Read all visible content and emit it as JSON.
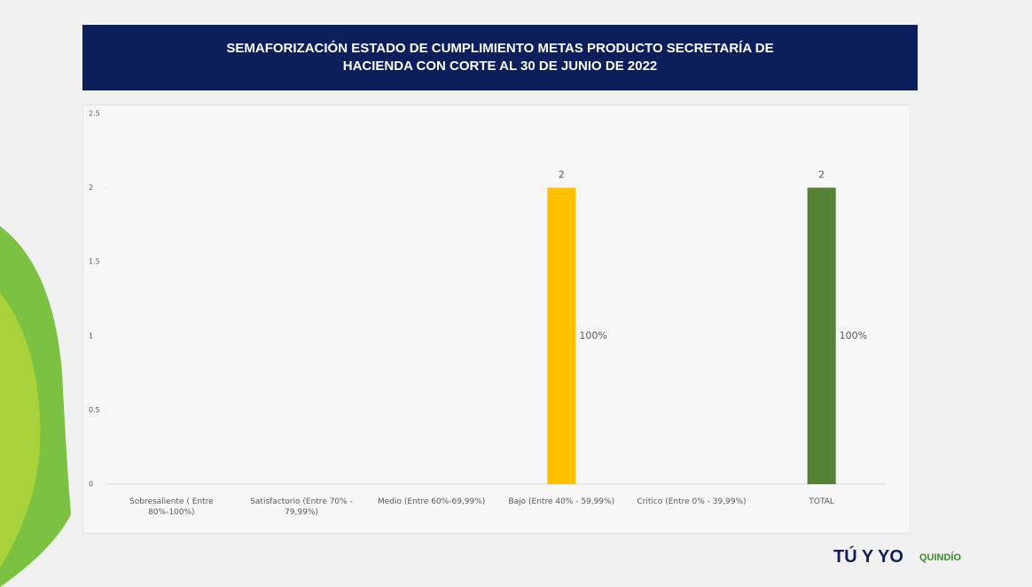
{
  "chart_data": {
    "type": "bar",
    "title_lines": [
      "SEMAFORIZACIÓN  ESTADO DE CUMPLIMIENTO METAS PRODUCTO  SECRETARÍA DE",
      "HACIENDA CON CORTE AL 30 DE JUNIO DE 2022"
    ],
    "categories": [
      "Sobresaliente  ( Entre 80%-100%)",
      "Satisfactorio (Entre 70% - 79,99%)",
      "Medio (Entre 60%-69,99%)",
      "Bajo (Entre 40% - 59,99%)",
      "Critico (Entre 0% - 39,99%)",
      "TOTAL"
    ],
    "values": [
      null,
      null,
      null,
      2,
      null,
      2
    ],
    "colors": [
      null,
      null,
      null,
      "#ffc000",
      null,
      "#548235"
    ],
    "shares": [
      null,
      null,
      null,
      100,
      null,
      100
    ],
    "share_labels": [
      null,
      null,
      null,
      "100%",
      null,
      "100%"
    ],
    "ylim": [
      0,
      2.5
    ],
    "yticks": [
      0,
      0.5,
      1,
      1.5,
      2,
      2.5
    ],
    "grid": false
  },
  "footer_logos": [
    "TÚ Y YO",
    "QUINDÍO"
  ]
}
